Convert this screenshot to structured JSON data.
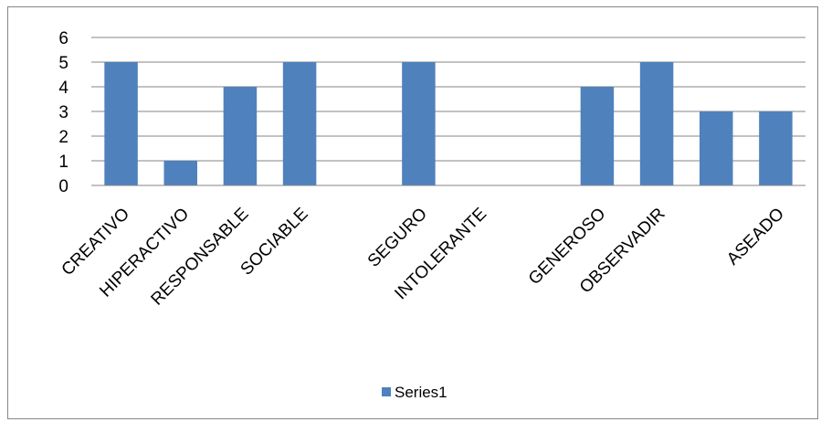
{
  "chart_data": {
    "type": "bar",
    "categories": [
      "CREATIVO",
      "HIPERACTIVO",
      "RESPONSABLE",
      "SOCIABLE",
      "",
      "SEGURO",
      "INTOLERANTE",
      "",
      "GENEROSO",
      "OBSERVADIR",
      "",
      "ASEADO"
    ],
    "series": [
      {
        "name": "Series1",
        "values": [
          5,
          1,
          4,
          5,
          0,
          5,
          0,
          0,
          4,
          5,
          3,
          3
        ],
        "color": "#4F81BD"
      }
    ],
    "ylim": [
      0,
      6
    ],
    "yticks": [
      "0",
      "1",
      "2",
      "3",
      "4",
      "5",
      "6"
    ],
    "grid": true,
    "legend_position": "bottom",
    "title": "",
    "xlabel": "",
    "ylabel": ""
  }
}
